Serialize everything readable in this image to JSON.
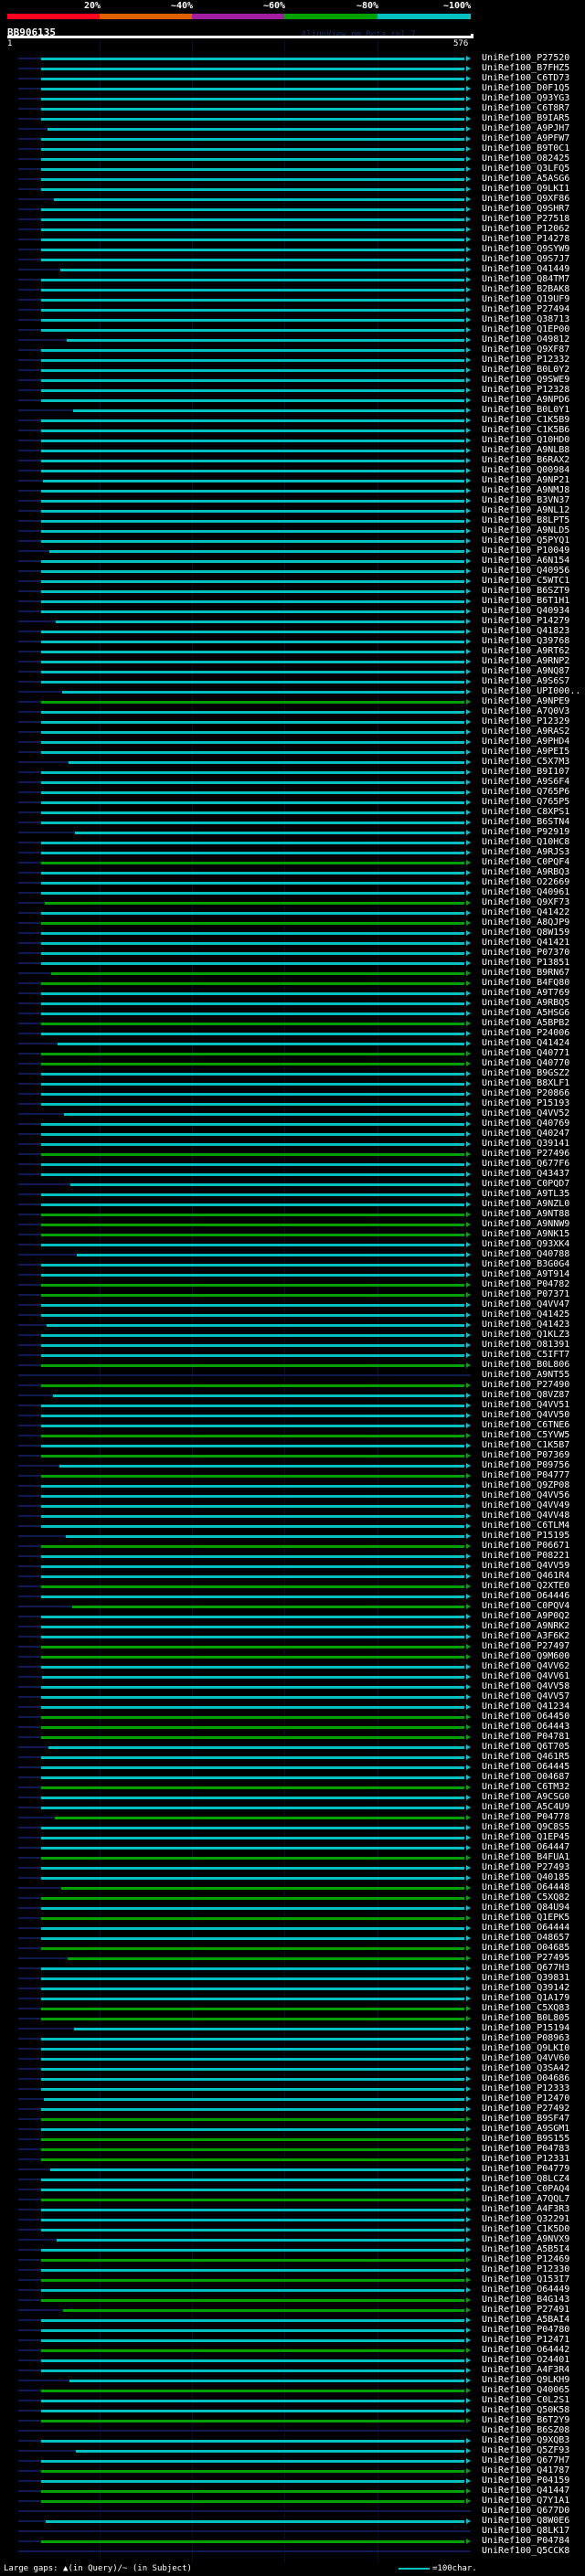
{
  "scale": {
    "labels": [
      "20%",
      "~40%",
      "~60%",
      "~80%",
      "~100%"
    ],
    "colors": [
      "#ff0020",
      "#e06000",
      "#a020a0",
      "#00a000",
      "#00c0c0"
    ]
  },
  "title": "BB906135",
  "version": "AlignView.pm Beta rel.7",
  "query": {
    "start": "1",
    "end": "576"
  },
  "colors": {
    "c": "#00c0c0",
    "g": "#00a000",
    "n": "#101850"
  },
  "hits": [
    [
      "UniRef100_P27520",
      "c"
    ],
    [
      "UniRef100_B7FHZ5",
      "c"
    ],
    [
      "UniRef100_C6TD73",
      "c"
    ],
    [
      "UniRef100_D0F1Q5",
      "c"
    ],
    [
      "UniRef100_Q93YG3",
      "c"
    ],
    [
      "UniRef100_C6T8R7",
      "c"
    ],
    [
      "UniRef100_B9IAR5",
      "c"
    ],
    [
      "UniRef100_A9PJH7",
      "c"
    ],
    [
      "UniRef100_A9PFW7",
      "c"
    ],
    [
      "UniRef100_B9T0C1",
      "c"
    ],
    [
      "UniRef100_O82425",
      "c"
    ],
    [
      "UniRef100_Q3LFQ5",
      "c"
    ],
    [
      "UniRef100_A5ASG6",
      "c"
    ],
    [
      "UniRef100_Q9LKI1",
      "c"
    ],
    [
      "UniRef100_Q9XF86",
      "c"
    ],
    [
      "UniRef100_Q9SHR7",
      "c"
    ],
    [
      "UniRef100_P27518",
      "c"
    ],
    [
      "UniRef100_P12062",
      "c"
    ],
    [
      "UniRef100_P14278",
      "c"
    ],
    [
      "UniRef100_Q9SYW9",
      "c"
    ],
    [
      "UniRef100_Q9S7J7",
      "c"
    ],
    [
      "UniRef100_Q41449",
      "c"
    ],
    [
      "UniRef100_Q84TM7",
      "c"
    ],
    [
      "UniRef100_B2BAK8",
      "c"
    ],
    [
      "UniRef100_Q19UF9",
      "c"
    ],
    [
      "UniRef100_P27494",
      "c"
    ],
    [
      "UniRef100_Q38713",
      "c"
    ],
    [
      "UniRef100_Q1EP00",
      "c"
    ],
    [
      "UniRef100_O49812",
      "c"
    ],
    [
      "UniRef100_Q9XF87",
      "c"
    ],
    [
      "UniRef100_P12332",
      "c"
    ],
    [
      "UniRef100_B0L0Y2",
      "c"
    ],
    [
      "UniRef100_Q9SWE9",
      "c"
    ],
    [
      "UniRef100_P12328",
      "c"
    ],
    [
      "UniRef100_A9NPD6",
      "c"
    ],
    [
      "UniRef100_B0L0Y1",
      "c"
    ],
    [
      "UniRef100_C1K5B9",
      "c"
    ],
    [
      "UniRef100_C1K5B6",
      "c"
    ],
    [
      "UniRef100_Q10HD0",
      "c"
    ],
    [
      "UniRef100_A9NLB8",
      "c"
    ],
    [
      "UniRef100_B6RAX2",
      "c"
    ],
    [
      "UniRef100_Q00984",
      "c"
    ],
    [
      "UniRef100_A9NP21",
      "c"
    ],
    [
      "UniRef100_A9NMJ8",
      "c"
    ],
    [
      "UniRef100_B3VN37",
      "c"
    ],
    [
      "UniRef100_A9NL12",
      "c"
    ],
    [
      "UniRef100_B8LPT5",
      "c"
    ],
    [
      "UniRef100_A9NLD5",
      "c"
    ],
    [
      "UniRef100_Q5PYQ1",
      "c"
    ],
    [
      "UniRef100_P10049",
      "c"
    ],
    [
      "UniRef100_A6N154",
      "c"
    ],
    [
      "UniRef100_Q40956",
      "c"
    ],
    [
      "UniRef100_C5WTC1",
      "c"
    ],
    [
      "UniRef100_B6SZT9",
      "c"
    ],
    [
      "UniRef100_B6T1H1",
      "c"
    ],
    [
      "UniRef100_Q40934",
      "c"
    ],
    [
      "UniRef100_P14279",
      "c"
    ],
    [
      "UniRef100_Q41823",
      "c"
    ],
    [
      "UniRef100_Q39768",
      "c"
    ],
    [
      "UniRef100_A9RT62",
      "c"
    ],
    [
      "UniRef100_A9RNP2",
      "c"
    ],
    [
      "UniRef100_A9NQ87",
      "c"
    ],
    [
      "UniRef100_A9S6S7",
      "c"
    ],
    [
      "UniRef100_UPI000..",
      "c"
    ],
    [
      "UniRef100_A9NPE9",
      "g"
    ],
    [
      "UniRef100_A7Q0V3",
      "c"
    ],
    [
      "UniRef100_P12329",
      "c"
    ],
    [
      "UniRef100_A9RAS2",
      "c"
    ],
    [
      "UniRef100_A9PHD4",
      "c"
    ],
    [
      "UniRef100_A9PEI5",
      "c"
    ],
    [
      "UniRef100_C5X7M3",
      "c"
    ],
    [
      "UniRef100_B9I107",
      "c"
    ],
    [
      "UniRef100_A9S6F4",
      "c"
    ],
    [
      "UniRef100_Q765P6",
      "c"
    ],
    [
      "UniRef100_Q765P5",
      "c"
    ],
    [
      "UniRef100_C8XPS1",
      "c"
    ],
    [
      "UniRef100_B6STN4",
      "c"
    ],
    [
      "UniRef100_P92919",
      "c"
    ],
    [
      "UniRef100_Q10HC8",
      "c"
    ],
    [
      "UniRef100_A9RJS3",
      "c"
    ],
    [
      "UniRef100_C0PQF4",
      "g"
    ],
    [
      "UniRef100_A9RBQ3",
      "c"
    ],
    [
      "UniRef100_O22669",
      "c"
    ],
    [
      "UniRef100_Q40961",
      "c"
    ],
    [
      "UniRef100_Q9XF73",
      "g"
    ],
    [
      "UniRef100_Q41422",
      "c"
    ],
    [
      "UniRef100_A8QJP9",
      "g"
    ],
    [
      "UniRef100_Q8W159",
      "c"
    ],
    [
      "UniRef100_Q41421",
      "c"
    ],
    [
      "UniRef100_P07370",
      "c"
    ],
    [
      "UniRef100_P13851",
      "c"
    ],
    [
      "UniRef100_B9RN67",
      "g"
    ],
    [
      "UniRef100_B4FQ80",
      "g"
    ],
    [
      "UniRef100_A9T769",
      "c"
    ],
    [
      "UniRef100_A9RBQ5",
      "c"
    ],
    [
      "UniRef100_A5HSG6",
      "c"
    ],
    [
      "UniRef100_A5BPB2",
      "g"
    ],
    [
      "UniRef100_P24006",
      "c"
    ],
    [
      "UniRef100_Q41424",
      "c"
    ],
    [
      "UniRef100_Q40771",
      "g"
    ],
    [
      "UniRef100_Q40770",
      "g"
    ],
    [
      "UniRef100_B9GSZ2",
      "c"
    ],
    [
      "UniRef100_B8XLF1",
      "c"
    ],
    [
      "UniRef100_P20866",
      "c"
    ],
    [
      "UniRef100_P15193",
      "c"
    ],
    [
      "UniRef100_Q4VV52",
      "c"
    ],
    [
      "UniRef100_Q40769",
      "c"
    ],
    [
      "UniRef100_Q40247",
      "c"
    ],
    [
      "UniRef100_Q39141",
      "c"
    ],
    [
      "UniRef100_P27496",
      "g"
    ],
    [
      "UniRef100_Q677F6",
      "c"
    ],
    [
      "UniRef100_Q43437",
      "c"
    ],
    [
      "UniRef100_C0PQD7",
      "c"
    ],
    [
      "UniRef100_A9TL35",
      "c"
    ],
    [
      "UniRef100_A9NZL0",
      "c"
    ],
    [
      "UniRef100_A9NT88",
      "g"
    ],
    [
      "UniRef100_A9NNW9",
      "g"
    ],
    [
      "UniRef100_A9NK15",
      "g"
    ],
    [
      "UniRef100_Q93XK4",
      "c"
    ],
    [
      "UniRef100_Q40788",
      "c"
    ],
    [
      "UniRef100_B3G0G4",
      "c"
    ],
    [
      "UniRef100_A9T914",
      "c"
    ],
    [
      "UniRef100_P04782",
      "g"
    ],
    [
      "UniRef100_P07371",
      "g"
    ],
    [
      "UniRef100_Q4VV47",
      "c"
    ],
    [
      "UniRef100_Q41425",
      "c"
    ],
    [
      "UniRef100_Q41423",
      "c"
    ],
    [
      "UniRef100_Q1KLZ3",
      "c"
    ],
    [
      "UniRef100_O81391",
      "c"
    ],
    [
      "UniRef100_C5IFT7",
      "c"
    ],
    [
      "UniRef100_B0L806",
      "g"
    ],
    [
      "UniRef100_A9NT55",
      "n"
    ],
    [
      "UniRef100_P27490",
      "g"
    ],
    [
      "UniRef100_Q8VZ87",
      "c"
    ],
    [
      "UniRef100_Q4VV51",
      "c"
    ],
    [
      "UniRef100_Q4VV50",
      "c"
    ],
    [
      "UniRef100_C6TNE6",
      "c"
    ],
    [
      "UniRef100_C5YVW5",
      "g"
    ],
    [
      "UniRef100_C1K5B7",
      "c"
    ],
    [
      "UniRef100_P07369",
      "g"
    ],
    [
      "UniRef100_P09756",
      "c"
    ],
    [
      "UniRef100_P04777",
      "g"
    ],
    [
      "UniRef100_Q9ZP08",
      "c"
    ],
    [
      "UniRef100_Q4VV56",
      "c"
    ],
    [
      "UniRef100_Q4VV49",
      "c"
    ],
    [
      "UniRef100_Q4VV48",
      "c"
    ],
    [
      "UniRef100_C6TLM4",
      "c"
    ],
    [
      "UniRef100_P15195",
      "c"
    ],
    [
      "UniRef100_P06671",
      "g"
    ],
    [
      "UniRef100_P08221",
      "c"
    ],
    [
      "UniRef100_Q4VV59",
      "c"
    ],
    [
      "UniRef100_Q461R4",
      "c"
    ],
    [
      "UniRef100_Q2XTE0",
      "g"
    ],
    [
      "UniRef100_O64446",
      "c"
    ],
    [
      "UniRef100_C0PQV4",
      "g"
    ],
    [
      "UniRef100_A9P0Q2",
      "c"
    ],
    [
      "UniRef100_A9NRK2",
      "c"
    ],
    [
      "UniRef100_A3F6K2",
      "c"
    ],
    [
      "UniRef100_P27497",
      "g"
    ],
    [
      "UniRef100_Q9M600",
      "g"
    ],
    [
      "UniRef100_Q4VV62",
      "c"
    ],
    [
      "UniRef100_Q4VV61",
      "c"
    ],
    [
      "UniRef100_Q4VV58",
      "c"
    ],
    [
      "UniRef100_Q4VV57",
      "c"
    ],
    [
      "UniRef100_Q41234",
      "c"
    ],
    [
      "UniRef100_O64450",
      "g"
    ],
    [
      "UniRef100_O64443",
      "g"
    ],
    [
      "UniRef100_P04781",
      "g"
    ],
    [
      "UniRef100_Q6T705",
      "c"
    ],
    [
      "UniRef100_Q461R5",
      "c"
    ],
    [
      "UniRef100_O64445",
      "c"
    ],
    [
      "UniRef100_O04687",
      "c"
    ],
    [
      "UniRef100_C6TM32",
      "g"
    ],
    [
      "UniRef100_A9CSG0",
      "c"
    ],
    [
      "UniRef100_A5C4U9",
      "c"
    ],
    [
      "UniRef100_P04778",
      "g"
    ],
    [
      "UniRef100_Q9C8S5",
      "c"
    ],
    [
      "UniRef100_Q1EP45",
      "c"
    ],
    [
      "UniRef100_O64447",
      "c"
    ],
    [
      "UniRef100_B4FUA1",
      "g"
    ],
    [
      "UniRef100_P27493",
      "c"
    ],
    [
      "UniRef100_Q40185",
      "c"
    ],
    [
      "UniRef100_O64448",
      "g"
    ],
    [
      "UniRef100_C5XQ82",
      "g"
    ],
    [
      "UniRef100_Q84U94",
      "c"
    ],
    [
      "UniRef100_Q1EPK5",
      "g"
    ],
    [
      "UniRef100_O64444",
      "c"
    ],
    [
      "UniRef100_O48657",
      "c"
    ],
    [
      "UniRef100_O04685",
      "g"
    ],
    [
      "UniRef100_P27495",
      "g"
    ],
    [
      "UniRef100_Q677H3",
      "c"
    ],
    [
      "UniRef100_Q39831",
      "c"
    ],
    [
      "UniRef100_Q39142",
      "c"
    ],
    [
      "UniRef100_Q1A179",
      "c"
    ],
    [
      "UniRef100_C5XQ83",
      "g"
    ],
    [
      "UniRef100_B0L805",
      "g"
    ],
    [
      "UniRef100_P15194",
      "c"
    ],
    [
      "UniRef100_P08963",
      "c"
    ],
    [
      "UniRef100_Q9LKI0",
      "c"
    ],
    [
      "UniRef100_Q4VV60",
      "c"
    ],
    [
      "UniRef100_Q3SA42",
      "c"
    ],
    [
      "UniRef100_O04686",
      "c"
    ],
    [
      "UniRef100_P12333",
      "c"
    ],
    [
      "UniRef100_P12470",
      "c"
    ],
    [
      "UniRef100_P27492",
      "c"
    ],
    [
      "UniRef100_B9SF47",
      "g"
    ],
    [
      "UniRef100_A9SGM1",
      "c"
    ],
    [
      "UniRef100_B9S155",
      "g"
    ],
    [
      "UniRef100_P04783",
      "g"
    ],
    [
      "UniRef100_P12331",
      "g"
    ],
    [
      "UniRef100_P04779",
      "c"
    ],
    [
      "UniRef100_Q8LCZ4",
      "c"
    ],
    [
      "UniRef100_C0PAQ4",
      "c"
    ],
    [
      "UniRef100_A7QQL7",
      "g"
    ],
    [
      "UniRef100_A4F3R3",
      "c"
    ],
    [
      "UniRef100_Q32291",
      "c"
    ],
    [
      "UniRef100_C1K5D0",
      "c"
    ],
    [
      "UniRef100_A9NVX9",
      "c"
    ],
    [
      "UniRef100_A5B5I4",
      "c"
    ],
    [
      "UniRef100_P12469",
      "g"
    ],
    [
      "UniRef100_P12330",
      "c"
    ],
    [
      "UniRef100_Q153I7",
      "g"
    ],
    [
      "UniRef100_O64449",
      "c"
    ],
    [
      "UniRef100_B4G143",
      "g"
    ],
    [
      "UniRef100_P27491",
      "g"
    ],
    [
      "UniRef100_A5BAI4",
      "c"
    ],
    [
      "UniRef100_P04780",
      "c"
    ],
    [
      "UniRef100_P12471",
      "c"
    ],
    [
      "UniRef100_O64442",
      "g"
    ],
    [
      "UniRef100_O24401",
      "c"
    ],
    [
      "UniRef100_A4F3R4",
      "c"
    ],
    [
      "UniRef100_Q9LKH9",
      "c"
    ],
    [
      "UniRef100_Q40065",
      "g"
    ],
    [
      "UniRef100_C0L2S1",
      "c"
    ],
    [
      "UniRef100_Q50K58",
      "c"
    ],
    [
      "UniRef100_B6T2Y9",
      "g"
    ],
    [
      "UniRef100_B6SZ08",
      "n"
    ],
    [
      "UniRef100_Q9XQB3",
      "c"
    ],
    [
      "UniRef100_Q5ZF93",
      "c"
    ],
    [
      "UniRef100_Q677H7",
      "c"
    ],
    [
      "UniRef100_Q41787",
      "g"
    ],
    [
      "UniRef100_P04159",
      "c"
    ],
    [
      "UniRef100_Q41447",
      "g"
    ],
    [
      "UniRef100_Q7Y1A1",
      "g"
    ],
    [
      "UniRef100_Q677D0",
      "n"
    ],
    [
      "UniRef100_Q8W0E6",
      "c"
    ],
    [
      "UniRef100_Q8LK17",
      "n"
    ],
    [
      "UniRef100_P04784",
      "g"
    ],
    [
      "UniRef100_Q5CCK8",
      "n"
    ]
  ],
  "footer": {
    "gaps": "Large gaps: ▲(in Query)/~ (in Subject)",
    "legend": "=100char."
  }
}
